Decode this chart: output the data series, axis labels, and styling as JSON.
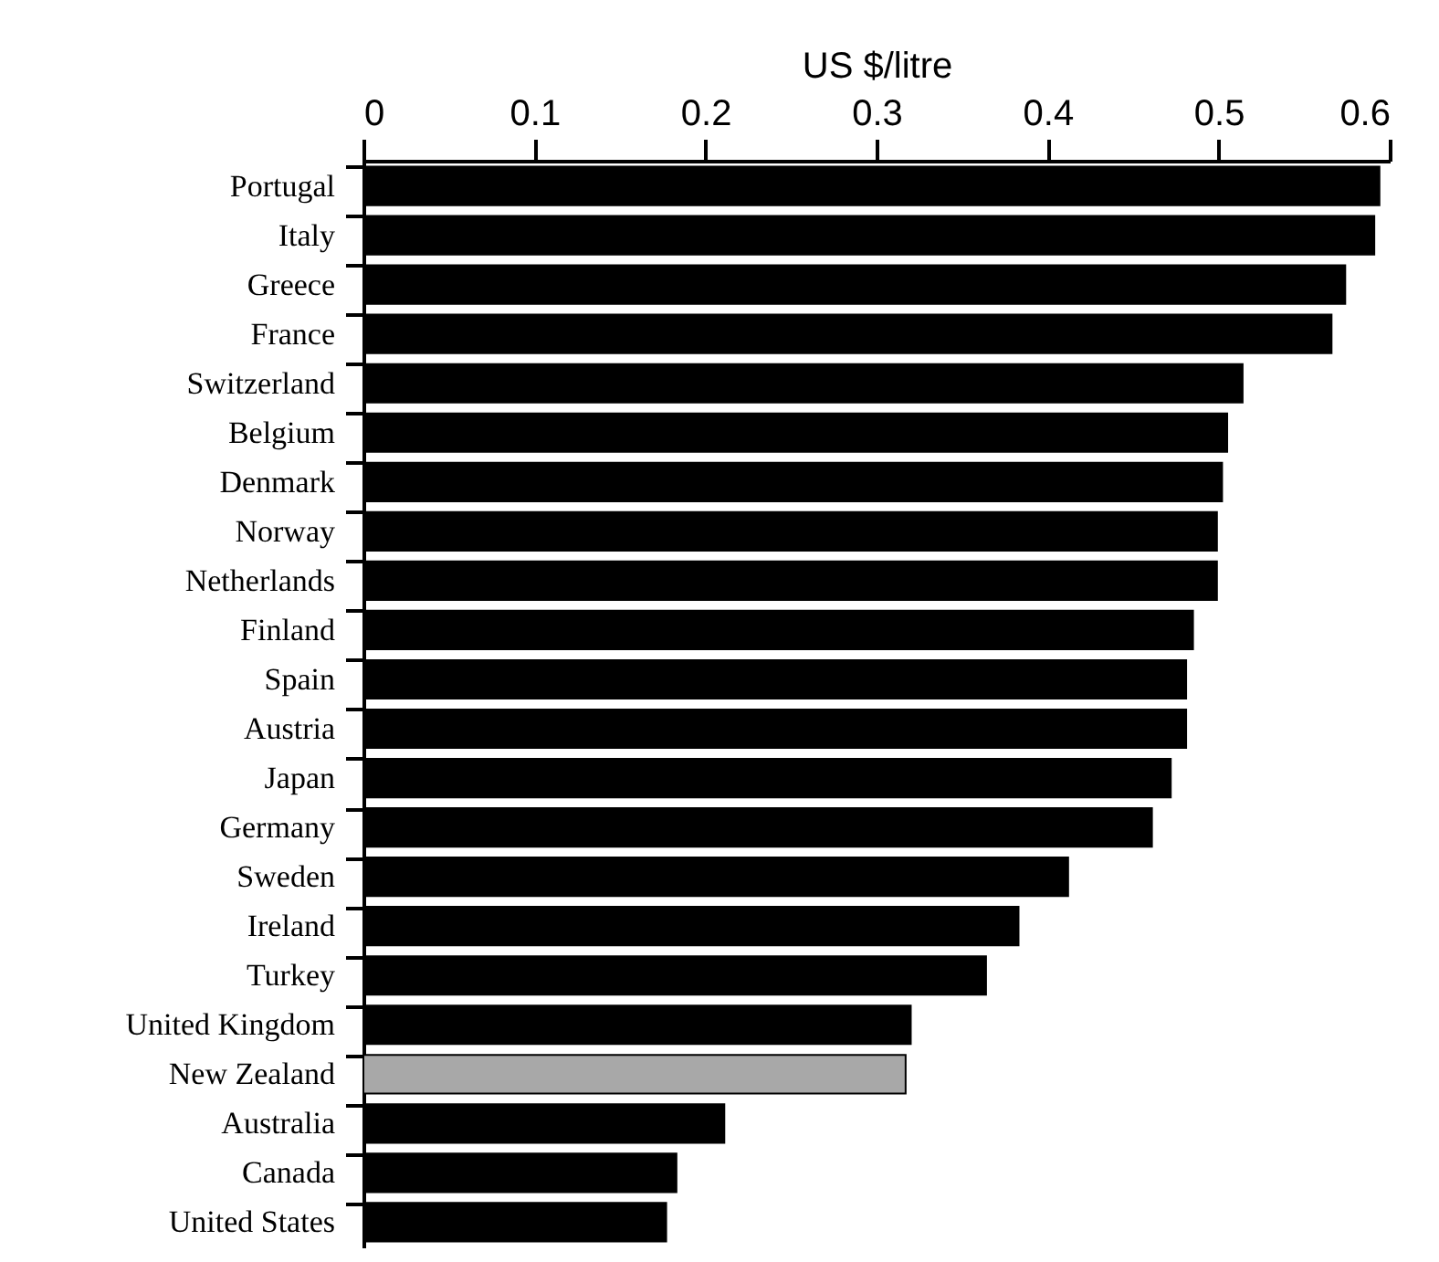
{
  "chart_data": {
    "type": "bar",
    "orientation": "horizontal",
    "xlabel": "US  $/litre",
    "categories": [
      "Portugal",
      "Italy",
      "Greece",
      "France",
      "Switzerland",
      "Belgium",
      "Denmark",
      "Norway",
      "Netherlands",
      "Finland",
      "Spain",
      "Austria",
      "Japan",
      "Germany",
      "Sweden",
      "Ireland",
      "Turkey",
      "United Kingdom",
      "New Zealand",
      "Australia",
      "Canada",
      "United States"
    ],
    "values": [
      0.594,
      0.591,
      0.574,
      0.566,
      0.514,
      0.505,
      0.502,
      0.499,
      0.499,
      0.485,
      0.481,
      0.481,
      0.472,
      0.461,
      0.412,
      0.383,
      0.364,
      0.32,
      0.317,
      0.211,
      0.183,
      0.177
    ],
    "colors": [
      "#000000",
      "#000000",
      "#000000",
      "#000000",
      "#000000",
      "#000000",
      "#000000",
      "#000000",
      "#000000",
      "#000000",
      "#000000",
      "#000000",
      "#000000",
      "#000000",
      "#000000",
      "#000000",
      "#000000",
      "#000000",
      "#a8a8a8",
      "#000000",
      "#000000",
      "#000000"
    ],
    "xlim": [
      0,
      0.6
    ],
    "xticks": [
      0,
      0.1,
      0.2,
      0.3,
      0.4,
      0.5,
      0.6
    ],
    "grid": false
  }
}
